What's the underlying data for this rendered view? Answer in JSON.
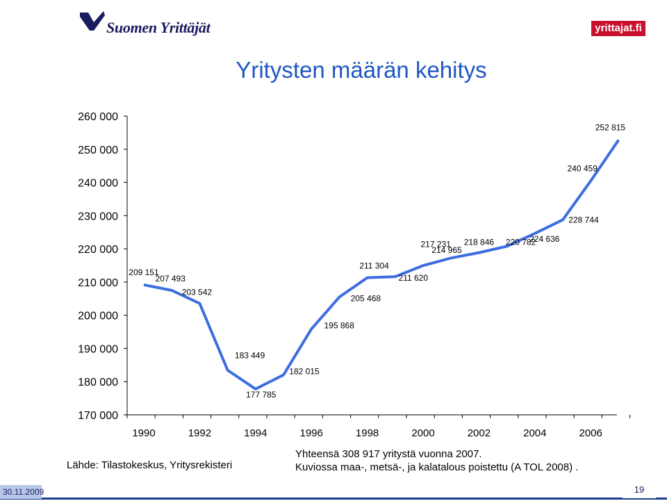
{
  "header": {
    "logo_left_text": "Suomen Yrittäjät",
    "logo_right_text": "yrittajat.fi",
    "title": "Yritysten määrän kehitys"
  },
  "chart_data": {
    "type": "line",
    "title": "Yritysten määrän kehitys",
    "x": [
      1990,
      1991,
      1992,
      1993,
      1994,
      1995,
      1996,
      1997,
      1998,
      1999,
      2000,
      2001,
      2002,
      2003,
      2004,
      2005,
      2006,
      2007
    ],
    "series": [
      {
        "values": [
          209151,
          207493,
          203542,
          183449,
          177785,
          182015,
          195868,
          205468,
          211304,
          211620,
          214965,
          217231,
          218846,
          220782,
          224636,
          228744,
          240459,
          252815
        ],
        "labels": [
          "209 151",
          "207 493",
          "203 542",
          "183 449",
          "177 785",
          "182 015",
          "195 868",
          "205 468",
          "211 304",
          "211 620",
          "214 965",
          "217 231",
          "218 846",
          "220 782",
          "224 636",
          "228 744",
          "240 459",
          "252 815"
        ]
      }
    ],
    "ylim": [
      170000,
      260000
    ],
    "yticks": [
      "170 000",
      "180 000",
      "190 000",
      "200 000",
      "210 000",
      "220 000",
      "230 000",
      "240 000",
      "250 000",
      "260 000"
    ],
    "xticks": [
      "1990",
      "1992",
      "1994",
      "1996",
      "1998",
      "2000",
      "2002",
      "2004",
      "2006"
    ],
    "xlabel": "",
    "ylabel": "",
    "line_color": "#3d6ee0",
    "grid": false,
    "legend": "none"
  },
  "footer": {
    "source": "Lähde: Tilastokeskus, Yritysrekisteri",
    "note_line1": "Yhteensä 308 917 yritystä vuonna 2007.",
    "note_line2": "Kuviossa  maa-, metsä-, ja kalatalous poistettu (A TOL 2008) .",
    "date": "30.11.2009",
    "page": "19"
  }
}
